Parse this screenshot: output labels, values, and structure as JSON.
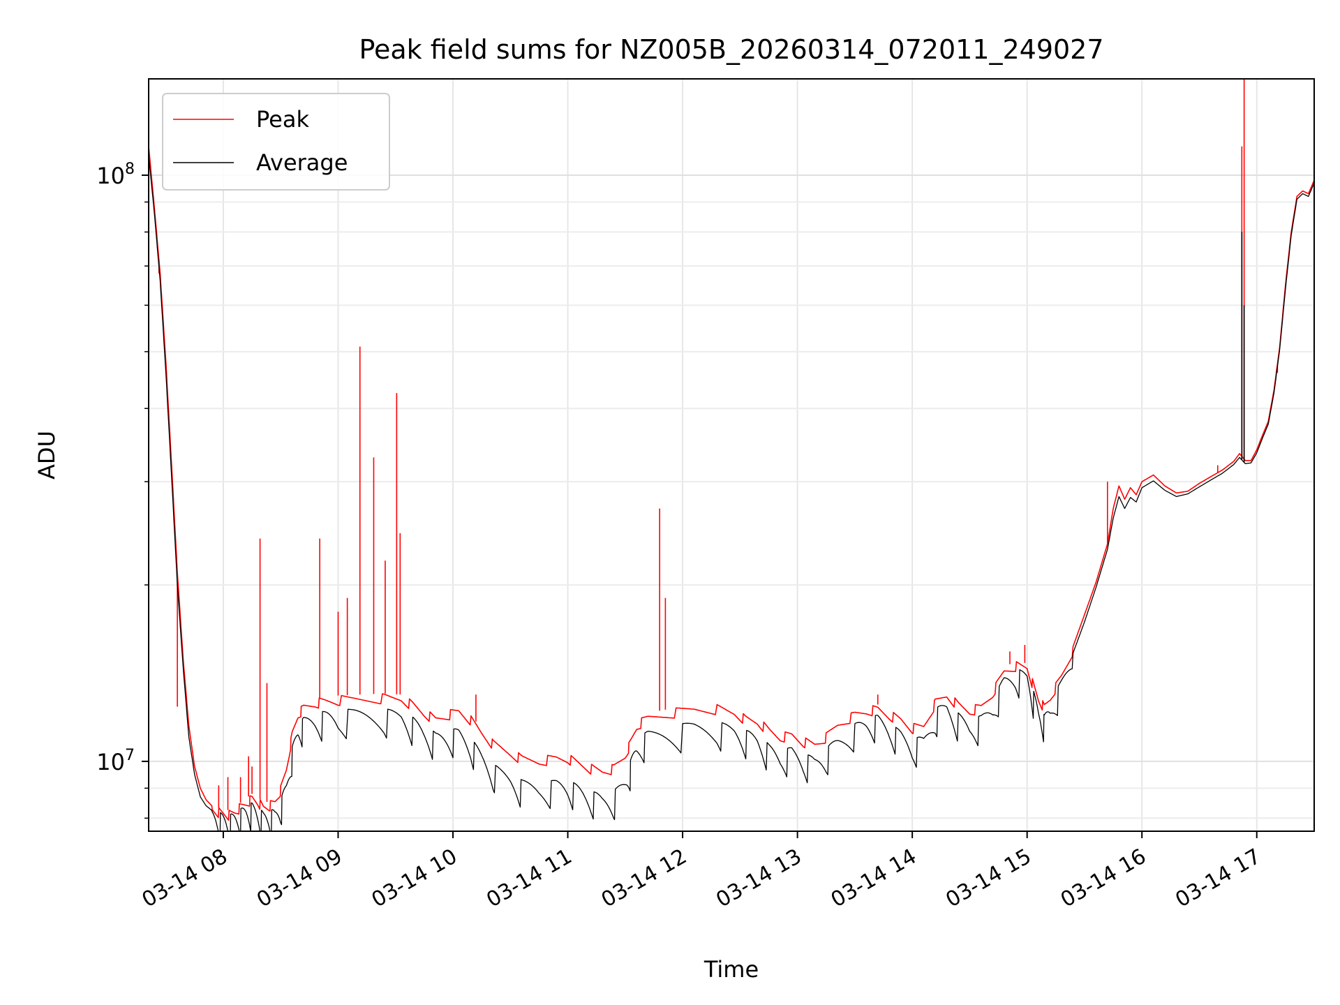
{
  "chart_data": {
    "type": "line",
    "title": "Peak field sums for NZ005B_20260314_072011_249027",
    "xlabel": "Time",
    "ylabel": "ADU",
    "x_unit": "hours (time of day, 2026-03-14)",
    "xlim": [
      7.35,
      17.5
    ],
    "ylim": [
      7600000,
      146000000
    ],
    "yscale": "log",
    "grid": true,
    "legend_position": "upper left",
    "x_ticks": [
      {
        "value": 8,
        "label": "03-14 08"
      },
      {
        "value": 9,
        "label": "03-14 09"
      },
      {
        "value": 10,
        "label": "03-14 10"
      },
      {
        "value": 11,
        "label": "03-14 11"
      },
      {
        "value": 12,
        "label": "03-14 12"
      },
      {
        "value": 13,
        "label": "03-14 13"
      },
      {
        "value": 14,
        "label": "03-14 14"
      },
      {
        "value": 15,
        "label": "03-14 15"
      },
      {
        "value": 16,
        "label": "03-14 16"
      },
      {
        "value": 17,
        "label": "03-14 17"
      }
    ],
    "y_ticks": [
      {
        "value": 10000000,
        "base": "10",
        "exp": "7"
      },
      {
        "value": 100000000,
        "base": "10",
        "exp": "8"
      }
    ],
    "series": [
      {
        "name": "Peak",
        "color": "#ff0000",
        "points": [
          [
            7.35,
            112000000
          ],
          [
            7.4,
            88000000
          ],
          [
            7.45,
            68000000
          ],
          [
            7.5,
            48000000
          ],
          [
            7.55,
            32000000
          ],
          [
            7.6,
            21000000
          ],
          [
            7.65,
            15000000
          ],
          [
            7.7,
            11500000
          ],
          [
            7.75,
            9800000
          ],
          [
            7.8,
            9000000
          ],
          [
            7.85,
            8600000
          ],
          [
            7.9,
            8400000
          ],
          [
            7.95,
            8350000
          ],
          [
            8.0,
            8300000
          ],
          [
            8.05,
            8250000
          ],
          [
            8.1,
            8350000
          ],
          [
            8.15,
            8500000
          ],
          [
            8.2,
            8650000
          ],
          [
            8.25,
            8800000
          ],
          [
            8.3,
            8700000
          ],
          [
            8.35,
            8500000
          ],
          [
            8.4,
            8550000
          ],
          [
            8.45,
            8700000
          ],
          [
            8.5,
            9100000
          ],
          [
            8.55,
            9900000
          ],
          [
            8.6,
            11300000
          ],
          [
            8.65,
            12200000
          ],
          [
            8.7,
            12600000
          ],
          [
            8.8,
            12800000
          ],
          [
            8.9,
            12900000
          ],
          [
            9.0,
            12950000
          ],
          [
            9.2,
            13000000
          ],
          [
            9.4,
            13050000
          ],
          [
            9.55,
            13000000
          ],
          [
            9.65,
            12700000
          ],
          [
            9.75,
            12300000
          ],
          [
            9.85,
            12000000
          ],
          [
            9.95,
            12200000
          ],
          [
            10.05,
            12400000
          ],
          [
            10.15,
            12000000
          ],
          [
            10.25,
            11400000
          ],
          [
            10.35,
            10900000
          ],
          [
            10.5,
            10500000
          ],
          [
            10.6,
            10300000
          ],
          [
            10.75,
            10200000
          ],
          [
            10.9,
            10300000
          ],
          [
            11.0,
            10300000
          ],
          [
            11.1,
            10100000
          ],
          [
            11.2,
            9900000
          ],
          [
            11.3,
            9800000
          ],
          [
            11.4,
            9900000
          ],
          [
            11.5,
            10400000
          ],
          [
            11.55,
            11000000
          ],
          [
            11.6,
            11700000
          ],
          [
            11.7,
            12100000
          ],
          [
            11.9,
            12300000
          ],
          [
            12.1,
            12500000
          ],
          [
            12.3,
            12500000
          ],
          [
            12.45,
            12300000
          ],
          [
            12.55,
            12000000
          ],
          [
            12.65,
            11900000
          ],
          [
            12.75,
            11500000
          ],
          [
            12.85,
            11200000
          ],
          [
            12.95,
            11300000
          ],
          [
            13.05,
            11000000
          ],
          [
            13.15,
            10900000
          ],
          [
            13.25,
            11200000
          ],
          [
            13.35,
            11800000
          ],
          [
            13.5,
            12200000
          ],
          [
            13.6,
            12400000
          ],
          [
            13.7,
            12500000
          ],
          [
            13.8,
            12200000
          ],
          [
            13.9,
            12000000
          ],
          [
            14.0,
            11600000
          ],
          [
            14.1,
            11700000
          ],
          [
            14.2,
            12800000
          ],
          [
            14.3,
            13200000
          ],
          [
            14.4,
            12700000
          ],
          [
            14.5,
            12400000
          ],
          [
            14.6,
            12600000
          ],
          [
            14.7,
            13300000
          ],
          [
            14.8,
            14500000
          ],
          [
            14.9,
            14800000
          ],
          [
            15.0,
            14700000
          ],
          [
            15.05,
            13800000
          ],
          [
            15.1,
            13000000
          ],
          [
            15.15,
            12600000
          ],
          [
            15.2,
            13100000
          ],
          [
            15.3,
            14200000
          ],
          [
            15.4,
            15700000
          ],
          [
            15.5,
            17800000
          ],
          [
            15.6,
            20200000
          ],
          [
            15.7,
            23500000
          ],
          [
            15.75,
            27000000
          ],
          [
            15.8,
            29500000
          ],
          [
            15.85,
            28000000
          ],
          [
            15.9,
            29300000
          ],
          [
            15.95,
            28500000
          ],
          [
            16.0,
            30000000
          ],
          [
            16.1,
            30800000
          ],
          [
            16.2,
            29500000
          ],
          [
            16.3,
            28700000
          ],
          [
            16.4,
            28900000
          ],
          [
            16.5,
            29800000
          ],
          [
            16.6,
            30600000
          ],
          [
            16.7,
            31400000
          ],
          [
            16.8,
            32500000
          ],
          [
            16.85,
            33500000
          ],
          [
            16.9,
            32600000
          ],
          [
            16.95,
            32600000
          ],
          [
            17.0,
            34000000
          ],
          [
            17.05,
            36000000
          ],
          [
            17.1,
            38000000
          ],
          [
            17.15,
            43000000
          ],
          [
            17.2,
            51000000
          ],
          [
            17.25,
            65000000
          ],
          [
            17.3,
            80000000
          ],
          [
            17.35,
            92000000
          ],
          [
            17.4,
            94000000
          ],
          [
            17.45,
            93000000
          ],
          [
            17.5,
            98000000
          ]
        ],
        "spikes": [
          [
            7.42,
            78000000
          ],
          [
            7.44,
            68000000
          ],
          [
            7.6,
            12400000
          ],
          [
            7.96,
            9100000
          ],
          [
            8.04,
            9400000
          ],
          [
            8.15,
            9400000
          ],
          [
            8.22,
            10200000
          ],
          [
            8.25,
            9800000
          ],
          [
            8.32,
            24000000
          ],
          [
            8.38,
            13600000
          ],
          [
            8.84,
            24000000
          ],
          [
            9.0,
            18000000
          ],
          [
            9.08,
            19000000
          ],
          [
            9.19,
            51000000
          ],
          [
            9.31,
            33000000
          ],
          [
            9.41,
            22000000
          ],
          [
            9.51,
            42500000
          ],
          [
            9.54,
            24500000
          ],
          [
            10.2,
            13000000
          ],
          [
            11.8,
            27000000
          ],
          [
            11.85,
            19000000
          ],
          [
            13.7,
            13000000
          ],
          [
            14.85,
            15400000
          ],
          [
            14.98,
            15800000
          ],
          [
            15.7,
            30000000
          ],
          [
            16.66,
            32000000
          ],
          [
            16.87,
            112000000
          ],
          [
            16.89,
            146000000
          ],
          [
            17.18,
            46000000
          ]
        ]
      },
      {
        "name": "Average",
        "color": "#000000",
        "points": [
          [
            7.35,
            108000000
          ],
          [
            7.4,
            86000000
          ],
          [
            7.45,
            66000000
          ],
          [
            7.5,
            46000000
          ],
          [
            7.55,
            30500000
          ],
          [
            7.6,
            20000000
          ],
          [
            7.65,
            14500000
          ],
          [
            7.7,
            11000000
          ],
          [
            7.75,
            9500000
          ],
          [
            7.8,
            8700000
          ],
          [
            7.85,
            8400000
          ],
          [
            7.9,
            8250000
          ],
          [
            7.95,
            8200000
          ],
          [
            8.0,
            8150000
          ],
          [
            8.05,
            8100000
          ],
          [
            8.1,
            8200000
          ],
          [
            8.15,
            8300000
          ],
          [
            8.2,
            8450000
          ],
          [
            8.25,
            8500000
          ],
          [
            8.3,
            8350000
          ],
          [
            8.35,
            8200000
          ],
          [
            8.4,
            8250000
          ],
          [
            8.45,
            8300000
          ],
          [
            8.5,
            8600000
          ],
          [
            8.55,
            9300000
          ],
          [
            8.6,
            10600000
          ],
          [
            8.65,
            11500000
          ],
          [
            8.7,
            11900000
          ],
          [
            8.8,
            12100000
          ],
          [
            8.9,
            12200000
          ],
          [
            9.0,
            12250000
          ],
          [
            9.2,
            12300000
          ],
          [
            9.4,
            12300000
          ],
          [
            9.55,
            12200000
          ],
          [
            9.65,
            11900000
          ],
          [
            9.75,
            11500000
          ],
          [
            9.85,
            11200000
          ],
          [
            9.95,
            11300000
          ],
          [
            10.05,
            11400000
          ],
          [
            10.15,
            11000000
          ],
          [
            10.25,
            10400000
          ],
          [
            10.35,
            9900000
          ],
          [
            10.5,
            9500000
          ],
          [
            10.6,
            9300000
          ],
          [
            10.75,
            9200000
          ],
          [
            10.9,
            9300000
          ],
          [
            11.0,
            9300000
          ],
          [
            11.1,
            9100000
          ],
          [
            11.2,
            8900000
          ],
          [
            11.3,
            8800000
          ],
          [
            11.4,
            8900000
          ],
          [
            11.5,
            9400000
          ],
          [
            11.55,
            10100000
          ],
          [
            11.6,
            10900000
          ],
          [
            11.7,
            11300000
          ],
          [
            11.9,
            11500000
          ],
          [
            12.1,
            11700000
          ],
          [
            12.3,
            11700000
          ],
          [
            12.45,
            11500000
          ],
          [
            12.55,
            11300000
          ],
          [
            12.65,
            11200000
          ],
          [
            12.75,
            10700000
          ],
          [
            12.85,
            10400000
          ],
          [
            12.95,
            10600000
          ],
          [
            13.05,
            10300000
          ],
          [
            13.15,
            10200000
          ],
          [
            13.25,
            10500000
          ],
          [
            13.35,
            11100000
          ],
          [
            13.5,
            11600000
          ],
          [
            13.6,
            11900000
          ],
          [
            13.7,
            12000000
          ],
          [
            13.8,
            11600000
          ],
          [
            13.9,
            11300000
          ],
          [
            14.0,
            10900000
          ],
          [
            14.1,
            11100000
          ],
          [
            14.2,
            12300000
          ],
          [
            14.3,
            12700000
          ],
          [
            14.4,
            12100000
          ],
          [
            14.5,
            11700000
          ],
          [
            14.6,
            12000000
          ],
          [
            14.7,
            12700000
          ],
          [
            14.8,
            14000000
          ],
          [
            14.9,
            14400000
          ],
          [
            15.0,
            14200000
          ],
          [
            15.05,
            13300000
          ],
          [
            15.1,
            12400000
          ],
          [
            15.15,
            12000000
          ],
          [
            15.2,
            12600000
          ],
          [
            15.3,
            13800000
          ],
          [
            15.4,
            15300000
          ],
          [
            15.5,
            17300000
          ],
          [
            15.6,
            19800000
          ],
          [
            15.7,
            23000000
          ],
          [
            15.75,
            26000000
          ],
          [
            15.8,
            28300000
          ],
          [
            15.85,
            27000000
          ],
          [
            15.9,
            28200000
          ],
          [
            15.95,
            27700000
          ],
          [
            16.0,
            29300000
          ],
          [
            16.1,
            30100000
          ],
          [
            16.2,
            29000000
          ],
          [
            16.3,
            28300000
          ],
          [
            16.4,
            28600000
          ],
          [
            16.5,
            29400000
          ],
          [
            16.6,
            30200000
          ],
          [
            16.7,
            31000000
          ],
          [
            16.8,
            32100000
          ],
          [
            16.85,
            33000000
          ],
          [
            16.9,
            32200000
          ],
          [
            16.95,
            32300000
          ],
          [
            17.0,
            33600000
          ],
          [
            17.05,
            35600000
          ],
          [
            17.1,
            37600000
          ],
          [
            17.15,
            42500000
          ],
          [
            17.2,
            50500000
          ],
          [
            17.25,
            64000000
          ],
          [
            17.3,
            79000000
          ],
          [
            17.35,
            91000000
          ],
          [
            17.4,
            93000000
          ],
          [
            17.45,
            92000000
          ],
          [
            17.5,
            97000000
          ]
        ],
        "spikes": [
          [
            16.87,
            80000000
          ],
          [
            16.89,
            60000000
          ]
        ]
      }
    ]
  }
}
